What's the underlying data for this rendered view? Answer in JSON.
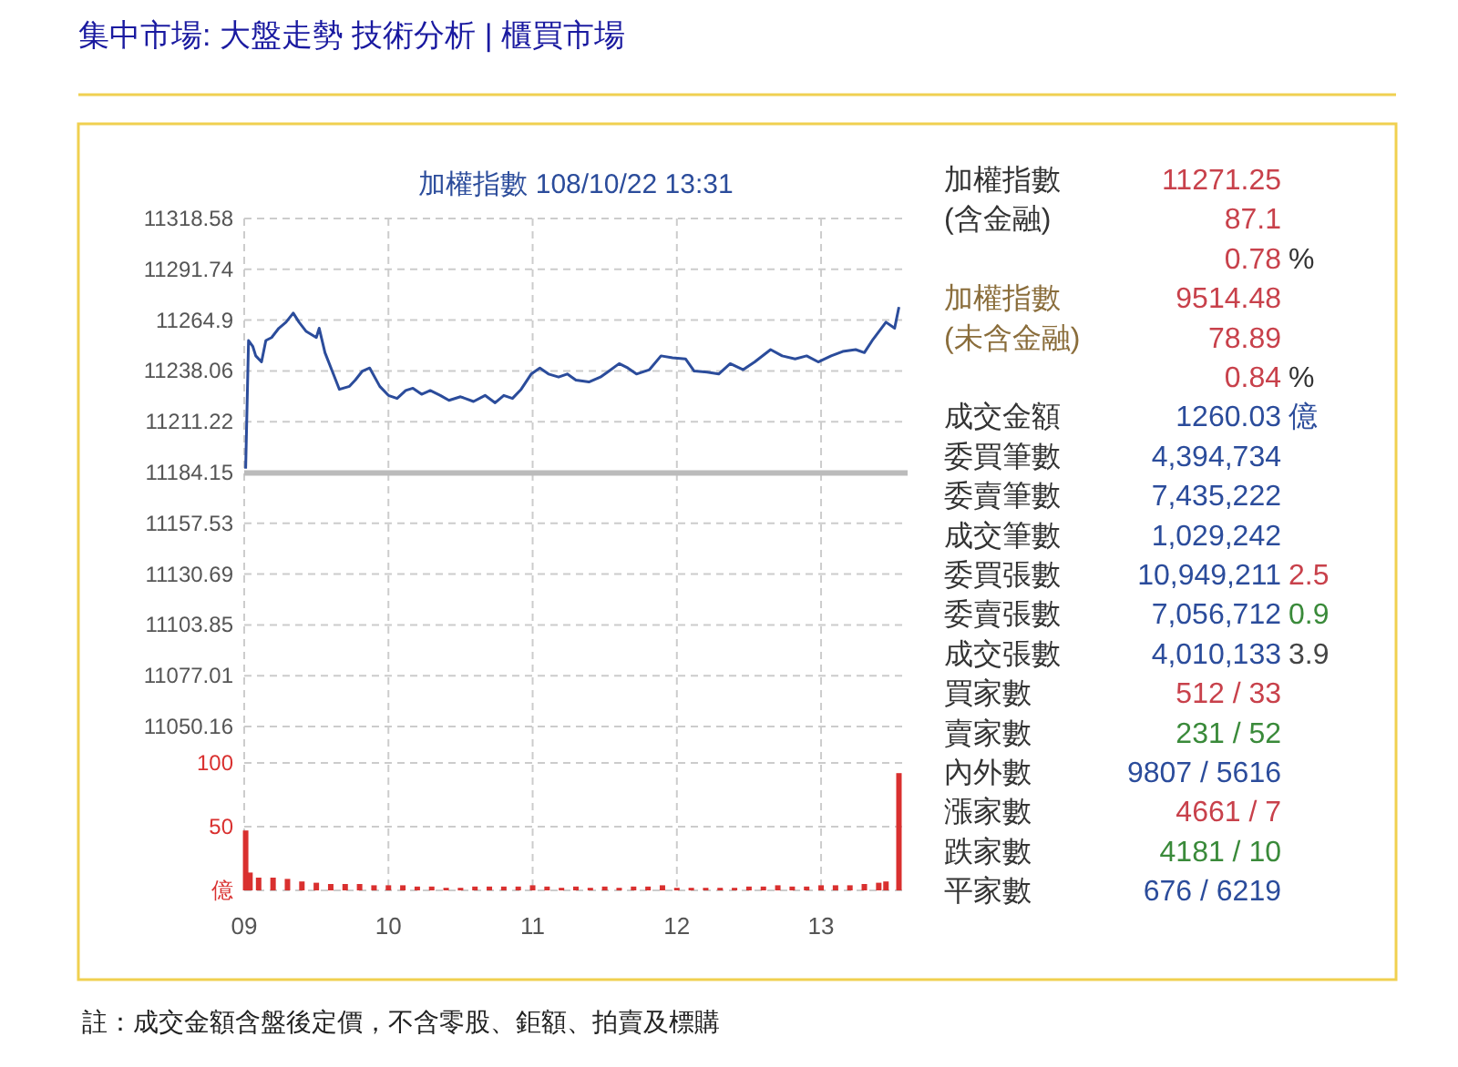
{
  "chart_data": [
    {
      "type": "line",
      "title": "加權指數 108/10/22 13:31",
      "xlim": [
        9,
        13.6
      ],
      "xticks": [
        9,
        10,
        11,
        12,
        13
      ],
      "ylim": [
        11050.16,
        11318.58
      ],
      "yticks": [
        11050.16,
        11077.01,
        11103.85,
        11130.69,
        11157.53,
        11184.15,
        11211.22,
        11238.06,
        11264.9,
        11291.74,
        11318.58
      ],
      "tick_labels": "y",
      "grid": true,
      "ref_lines": [
        {
          "axis": "y",
          "value": 11184.15,
          "color": "#bbbbbb"
        }
      ],
      "series": [
        {
          "color": "#2b4c9b",
          "x": [
            9.01,
            9.03,
            9.06,
            9.08,
            9.12,
            9.15,
            9.19,
            9.24,
            9.29,
            9.34,
            9.38,
            9.43,
            9.5,
            9.52,
            9.56,
            9.61,
            9.66,
            9.73,
            9.77,
            9.82,
            9.87,
            9.94,
            10.0,
            10.06,
            10.12,
            10.17,
            10.23,
            10.29,
            10.36,
            10.42,
            10.5,
            10.59,
            10.67,
            10.74,
            10.8,
            10.86,
            10.92,
            10.99,
            11.05,
            11.11,
            11.18,
            11.24,
            11.3,
            11.39,
            11.47,
            11.53,
            11.6,
            11.66,
            11.72,
            11.81,
            11.89,
            11.97,
            12.06,
            12.12,
            12.21,
            12.29,
            12.37,
            12.46,
            12.54,
            12.65,
            12.73,
            12.82,
            12.9,
            12.98,
            13.07,
            13.15,
            13.24,
            13.3,
            13.36,
            13.45,
            13.51,
            13.54
          ],
          "values": [
            11186.4,
            11254.1,
            11250.9,
            11246.0,
            11242.8,
            11254.1,
            11255.7,
            11260.6,
            11263.8,
            11268.6,
            11263.8,
            11258.9,
            11255.7,
            11260.6,
            11247.7,
            11238.0,
            11228.3,
            11229.9,
            11233.2,
            11238.0,
            11239.6,
            11229.9,
            11225.1,
            11223.5,
            11227.7,
            11228.9,
            11225.7,
            11227.7,
            11225.1,
            11222.5,
            11224.4,
            11221.9,
            11225.1,
            11221.2,
            11225.1,
            11223.5,
            11228.3,
            11236.4,
            11239.6,
            11236.4,
            11234.8,
            11236.4,
            11233.2,
            11232.2,
            11234.8,
            11238.0,
            11241.9,
            11239.6,
            11236.4,
            11238.7,
            11246.0,
            11245.0,
            11244.4,
            11238.0,
            11237.4,
            11236.4,
            11241.9,
            11238.7,
            11242.8,
            11249.3,
            11246.0,
            11244.4,
            11246.0,
            11242.8,
            11246.0,
            11248.3,
            11249.3,
            11247.7,
            11254.7,
            11263.8,
            11260.6,
            11271.8
          ]
        }
      ]
    },
    {
      "type": "bar",
      "xlim": [
        9,
        13.6
      ],
      "xticks": [
        {
          "value": 9,
          "label": "09"
        },
        10,
        11,
        12,
        13
      ],
      "ylim": [
        0,
        100
      ],
      "yticks": [
        {
          "value": 0,
          "label": "億"
        },
        50,
        100
      ],
      "grid": true,
      "annotations": [
        "註：成交金額含盤後定價，不含零股、鉅額、拍賣及標購"
      ],
      "series": [
        {
          "color": "#d9302f",
          "x": [
            9.01,
            9.04,
            9.1,
            9.2,
            9.3,
            9.4,
            9.5,
            9.6,
            9.7,
            9.8,
            9.9,
            10.0,
            10.1,
            10.2,
            10.3,
            10.4,
            10.5,
            10.6,
            10.7,
            10.8,
            10.9,
            11.0,
            11.1,
            11.2,
            11.3,
            11.4,
            11.5,
            11.6,
            11.7,
            11.8,
            11.9,
            12.0,
            12.1,
            12.2,
            12.3,
            12.4,
            12.5,
            12.6,
            12.7,
            12.8,
            12.9,
            13.0,
            13.1,
            13.2,
            13.3,
            13.4,
            13.45,
            13.54
          ],
          "values": [
            47,
            14,
            10,
            10,
            9,
            7,
            6,
            5,
            5,
            5,
            4,
            4,
            4,
            3,
            3,
            2,
            2,
            3,
            3,
            3,
            3,
            4,
            3,
            2,
            3,
            2,
            3,
            2,
            3,
            3,
            4,
            2,
            2,
            2,
            2,
            2,
            3,
            3,
            4,
            3,
            3,
            4,
            4,
            4,
            5,
            6,
            7,
            92
          ]
        }
      ]
    },
    {
      "type": "other",
      "title": "集中市場: 大盤走勢 技術分析 | 櫃買市場",
      "annotations": [
        "加權指數",
        "11271.25",
        null,
        "(含金融)",
        "87.1",
        null,
        null,
        "0.78",
        "%",
        "加權指數",
        "9514.48",
        null,
        "(未含金融)",
        "78.89",
        null,
        null,
        "0.84",
        "%",
        "成交金額",
        "1260.03",
        "億",
        "委買筆數",
        "4,394,734",
        null,
        "委賣筆數",
        "7,435,222",
        null,
        "成交筆數",
        "1,029,242",
        null,
        "委買張數",
        "10,949,211",
        "2.5",
        "委賣張數",
        "7,056,712",
        "0.9",
        "成交張數",
        "4,010,133",
        "3.9",
        "買家數",
        "512 / 33",
        null,
        "賣家數",
        "231 / 52",
        null,
        "內外數",
        "9807 / 5616",
        null,
        "漲家數",
        "4661 / 7",
        null,
        "跌家數",
        "4181 / 10",
        null,
        "平家數",
        "676 / 6219",
        null
      ],
      "colors": [
        "#333333",
        "#c8414b",
        null,
        "#333333",
        "#c8414b",
        null,
        null,
        "#c8414b",
        "#333333",
        "#8a6d3b",
        "#c8414b",
        null,
        "#8a6d3b",
        "#c8414b",
        null,
        null,
        "#c8414b",
        "#333333",
        "#333333",
        "#2b4c9b",
        "#2b4c9b",
        "#333333",
        "#2b4c9b",
        null,
        "#333333",
        "#2b4c9b",
        null,
        "#333333",
        "#2b4c9b",
        null,
        "#333333",
        "#2b4c9b",
        "#c8414b",
        "#333333",
        "#2b4c9b",
        "#3a8a3a",
        "#333333",
        "#2b4c9b",
        "#444444",
        "#333333",
        "#c8414b",
        null,
        "#333333",
        "#3a8a3a",
        null,
        "#333333",
        "#2b4c9b",
        null,
        "#333333",
        "#c8414b",
        null,
        "#333333",
        "#3a8a3a",
        null,
        "#333333",
        "#2b4c9b",
        null
      ]
    }
  ]
}
